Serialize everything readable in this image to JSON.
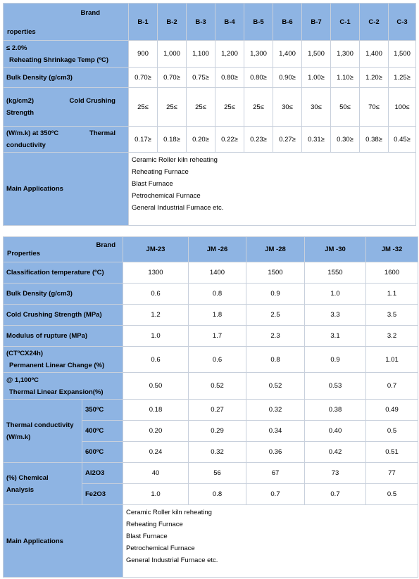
{
  "table1": {
    "brand_label": "Brand",
    "properties_label": "roperties",
    "columns": [
      "B-1",
      "B-2",
      "B-3",
      "B-4",
      "B-5",
      "B-6",
      "B-7",
      "C-1",
      "C-2",
      "C-3"
    ],
    "rows": [
      {
        "label_top": "≤ 2.0%",
        "label_bottom": "Reheating Shrinkage Temp (ºC)",
        "values": [
          "900",
          "1,000",
          "1,100",
          "1,200",
          "1,300",
          "1,400",
          "1,500",
          "1,300",
          "1,400",
          "1,500"
        ]
      },
      {
        "label_top": "",
        "label_bottom": "Bulk Density (g/cm3)",
        "values": [
          "0.70≥",
          "0.70≥",
          "0.75≥",
          "0.80≥",
          "0.80≥",
          "0.90≥",
          "1.00≥",
          "1.10≥",
          "1.20≥",
          "1.25≥"
        ]
      },
      {
        "label_top": "(kg/cm2)",
        "label_top_right": "Cold Crushing",
        "label_bottom": "Strength",
        "values": [
          "25≤",
          "25≤",
          "25≤",
          "25≤",
          "25≤",
          "30≤",
          "30≤",
          "50≤",
          "70≤",
          "100≤"
        ]
      },
      {
        "label_top": "(W/m.k) at 350ºC",
        "label_top_right": "Thermal",
        "label_bottom": "conductivity",
        "values": [
          "0.17≥",
          "0.18≥",
          "0.20≥",
          "0.22≥",
          "0.23≥",
          "0.27≥",
          "0.31≥",
          "0.30≥",
          "0.38≥",
          "0.45≥"
        ]
      }
    ],
    "applications_label": "Main Applications",
    "applications": [
      "Ceramic Roller kiln reheating",
      "Reheating Furnace",
      "Blast Furnace",
      "Petrochemical Furnace",
      "General Industrial Furnace etc."
    ]
  },
  "table2": {
    "brand_label": "Brand",
    "properties_label": "Properties",
    "columns": [
      "JM-23",
      "JM -26",
      "JM -28",
      "JM -30",
      "JM -32"
    ],
    "rows": [
      {
        "label": "Classification temperature  (ºC)",
        "values": [
          "1300",
          "1400",
          "1500",
          "1550",
          "1600"
        ]
      },
      {
        "label": "Bulk Density (g/cm3)",
        "values": [
          "0.6",
          "0.8",
          "0.9",
          "1.0",
          "1.1"
        ]
      },
      {
        "label": "Cold Crushing Strength (MPa)",
        "values": [
          "1.2",
          "1.8",
          "2.5",
          "3.3",
          "3.5"
        ]
      },
      {
        "label": "Modulus of rupture (MPa)",
        "values": [
          "1.0",
          "1.7",
          "2.3",
          "3.1",
          "3.2"
        ]
      },
      {
        "label_top": "(CTºCX24h)",
        "label_bottom": "Permanent Linear Change (%)",
        "values": [
          "0.6",
          "0.6",
          "0.8",
          "0.9",
          "1.01"
        ]
      },
      {
        "label_top": "@ 1,100ºC",
        "label_bottom": "Thermal Linear Expansion(%)",
        "values": [
          "0.50",
          "0.52",
          "0.52",
          "0.53",
          "0.7"
        ]
      }
    ],
    "thermal": {
      "label_top": "Thermal conductivity",
      "label_bottom": "(W/m.k)",
      "subrows": [
        {
          "temp": "350ºC",
          "values": [
            "0.18",
            "0.27",
            "0.32",
            "0.38",
            "0.49"
          ]
        },
        {
          "temp": "400ºC",
          "values": [
            "0.20",
            "0.29",
            "0.34",
            "0.40",
            "0.5"
          ]
        },
        {
          "temp": "600ºC",
          "values": [
            "0.24",
            "0.32",
            "0.36",
            "0.42",
            "0.51"
          ]
        }
      ]
    },
    "chemical": {
      "label_top": "(%) Chemical",
      "label_bottom": "Analysis",
      "subrows": [
        {
          "compound": "Al2O3",
          "values": [
            "40",
            "56",
            "67",
            "73",
            "77"
          ]
        },
        {
          "compound": "Fe2O3",
          "values": [
            "1.0",
            "0.8",
            "0.7",
            "0.7",
            "0.5"
          ]
        }
      ]
    },
    "applications_label": "Main Applications",
    "applications": [
      "Ceramic Roller kiln reheating",
      "Reheating Furnace",
      "Blast Furnace",
      "Petrochemical Furnace",
      "General Industrial Furnace etc."
    ]
  }
}
